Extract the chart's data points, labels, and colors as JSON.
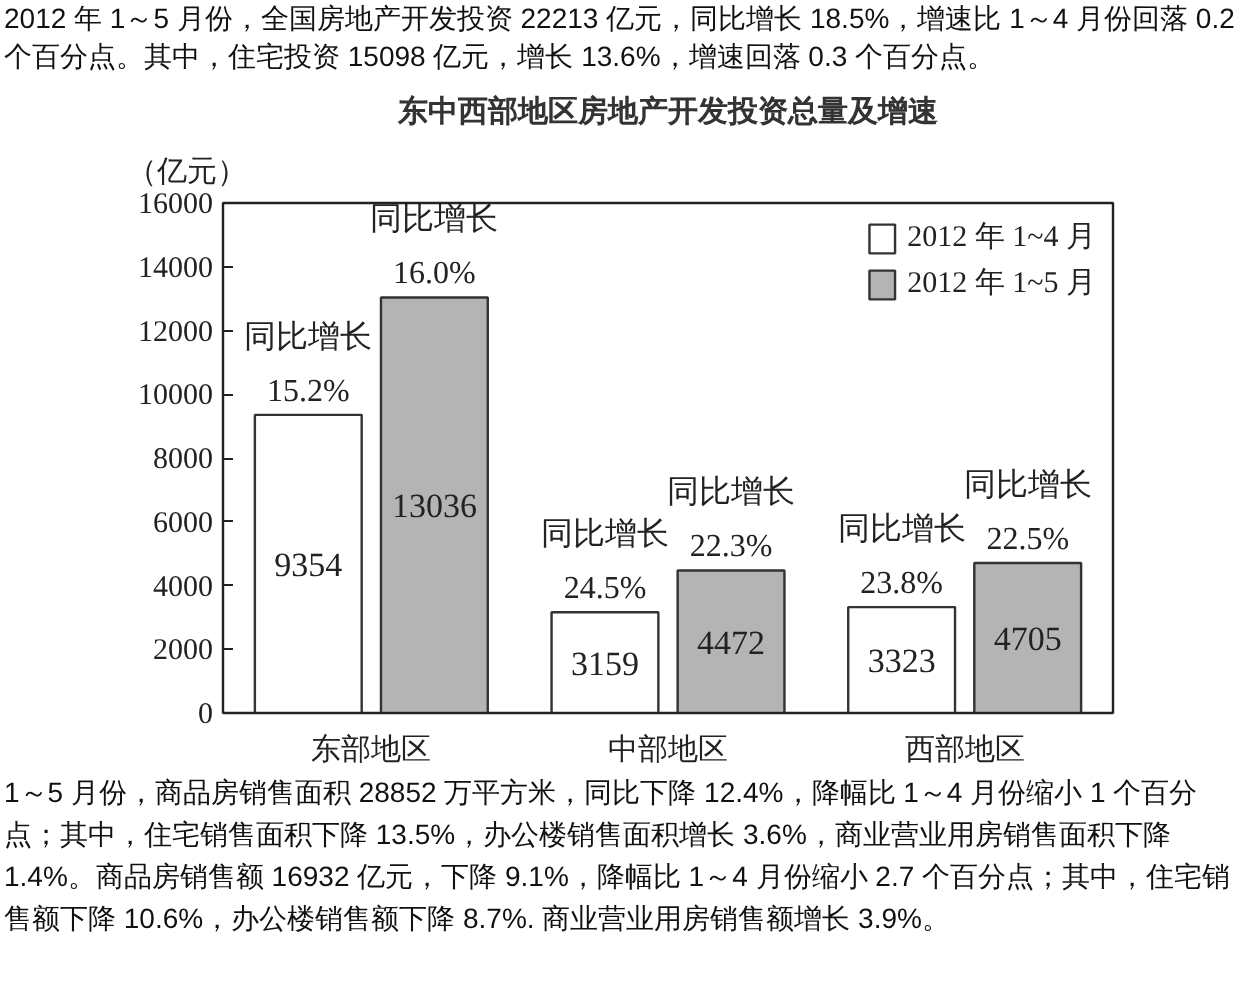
{
  "chart_data": {
    "type": "bar",
    "title": "东中西部地区房地产开发投资总量及增速",
    "ylabel": "（亿元）",
    "categories": [
      "东部地区",
      "中部地区",
      "西部地区"
    ],
    "series": [
      {
        "name": "2012 年 1~4 月",
        "color": "#ffffff",
        "values": [
          9354,
          3159,
          3323
        ]
      },
      {
        "name": "2012 年 1~5 月",
        "color": "#b4b4b4",
        "values": [
          13036,
          4472,
          4705
        ]
      }
    ],
    "ylim": [
      0,
      16000
    ],
    "yticks": [
      0,
      2000,
      4000,
      6000,
      8000,
      10000,
      12000,
      14000,
      16000
    ],
    "data_labels": true,
    "grid": false,
    "legend": "top right",
    "annotations": [
      "2012 年 1～5 月份，全国房地产开发投资 22213 亿元，同比增长 18.5%，增速比 1～4 月份回落 0.2 个百分点。其中，住宅投资 15098 亿元，增长 13.6%，增速回落 0.3 个百分点。",
      {
        "text": "同比增长\n15.2%",
        "x": "东部地区",
        "y": 9354
      },
      {
        "text": "同比增长\n16.0%",
        "x": "东部地区",
        "y": 13036
      },
      {
        "text": "同比增长\n24.5%",
        "x": "中部地区",
        "y": 3159
      },
      {
        "text": "同比增长\n22.3%",
        "x": "中部地区",
        "y": 4472
      },
      {
        "text": "同比增长\n23.8%",
        "x": "西部地区",
        "y": 3323
      },
      {
        "text": "同比增长\n22.5%",
        "x": "西部地区",
        "y": 4705
      },
      "1～5 月份，商品房销售面积 28852 万平方米，同比下降 12.4%，降幅比 1～4 月份缩小 1 个百分点；其中，住宅销售面积下降 13.5%，办公楼销售面积增长 3.6%，商业营业用房销售面积下降 1.4%。商品房销售额 16932 亿元，下降 9.1%，降幅比 1～4 月份缩小 2.7 个百分点；其中，住宅销售额下降 10.6%，办公楼销售额下降 8.7%. 商业营业用房销售额增长 3.9%。"
    ]
  }
}
